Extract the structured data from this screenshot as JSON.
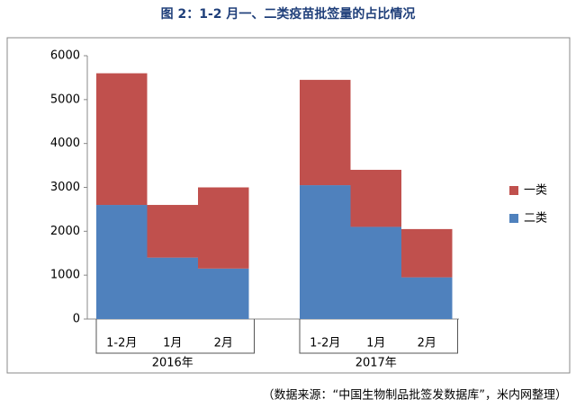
{
  "chart_data": {
    "type": "stacked-bar",
    "title": "图 2：1-2 月一、二类疫苗批签量的占比情况",
    "categories": [
      "1-2月",
      "1月",
      "2月",
      "1-2月",
      "1月",
      "2月"
    ],
    "groups": [
      {
        "label": "2016年",
        "size": 3
      },
      {
        "label": "2017年",
        "size": 3
      }
    ],
    "series": [
      {
        "name": "二类",
        "color": "#4f81bd",
        "values": [
          2600,
          1400,
          1150,
          3050,
          2100,
          950
        ]
      },
      {
        "name": "一类",
        "color": "#c0504d",
        "values": [
          3000,
          1200,
          1850,
          2400,
          1300,
          1100
        ]
      }
    ],
    "ylim": [
      0,
      6000
    ],
    "yticks": [
      0,
      1000,
      2000,
      3000,
      4000,
      5000,
      6000
    ],
    "legend": "right",
    "source": "（数据来源：“中国生物制品批签发数据库”，米内网整理）"
  }
}
